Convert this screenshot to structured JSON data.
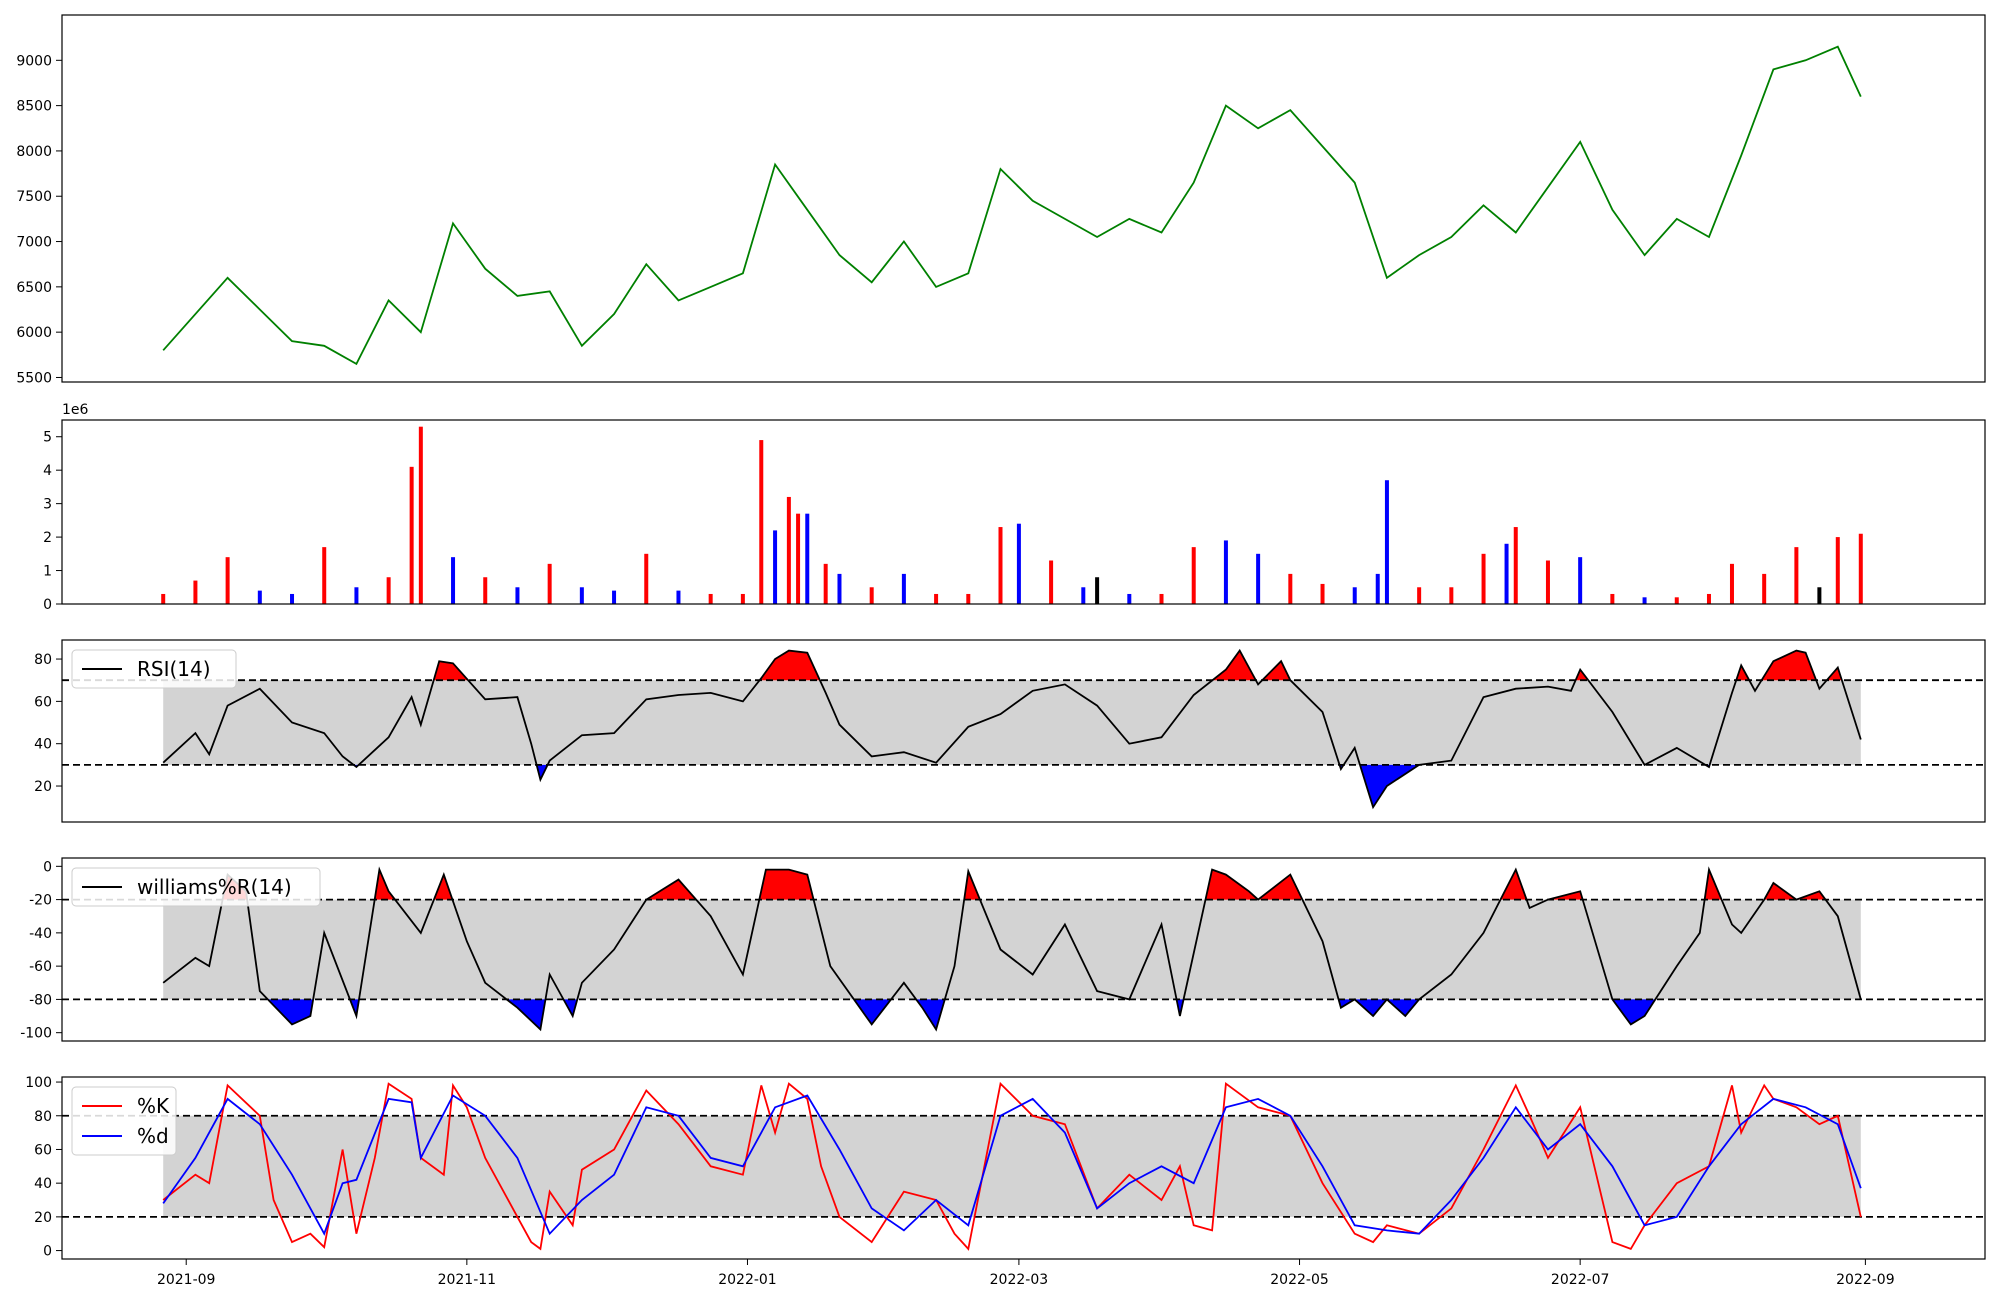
{
  "chart_data": [
    {
      "panel": "price",
      "type": "line",
      "color": "#008000",
      "ylim": [
        5450,
        9500
      ],
      "yticks": [
        5500,
        6000,
        6500,
        7000,
        7500,
        8000,
        8500,
        9000
      ],
      "x": [
        "2021-08-27",
        "2021-09-10",
        "2021-09-17",
        "2021-09-24",
        "2021-10-01",
        "2021-10-08",
        "2021-10-15",
        "2021-10-22",
        "2021-10-29",
        "2021-11-05",
        "2021-11-12",
        "2021-11-19",
        "2021-11-26",
        "2021-12-03",
        "2021-12-10",
        "2021-12-17",
        "2021-12-24",
        "2021-12-31",
        "2022-01-07",
        "2022-01-14",
        "2022-01-21",
        "2022-01-28",
        "2022-02-04",
        "2022-02-11",
        "2022-02-18",
        "2022-02-25",
        "2022-03-04",
        "2022-03-11",
        "2022-03-18",
        "2022-03-25",
        "2022-04-01",
        "2022-04-08",
        "2022-04-15",
        "2022-04-22",
        "2022-04-29",
        "2022-05-06",
        "2022-05-13",
        "2022-05-20",
        "2022-05-27",
        "2022-06-03",
        "2022-06-10",
        "2022-06-17",
        "2022-06-24",
        "2022-07-01",
        "2022-07-08",
        "2022-07-15",
        "2022-07-22",
        "2022-07-29",
        "2022-08-05",
        "2022-08-12",
        "2022-08-19",
        "2022-08-26",
        "2022-08-31"
      ],
      "y": [
        5800,
        6600,
        6250,
        5900,
        5850,
        5650,
        6350,
        6000,
        7200,
        6700,
        6400,
        6450,
        5850,
        6200,
        6750,
        6350,
        6500,
        6650,
        7850,
        7350,
        6850,
        6550,
        7000,
        6500,
        6650,
        7800,
        7450,
        7250,
        7050,
        7250,
        7100,
        7650,
        8500,
        8250,
        8450,
        8050,
        7650,
        6600,
        6850,
        7050,
        7400,
        7100,
        7600,
        8100,
        7350,
        6850,
        7250,
        7050,
        7950,
        8900,
        9000,
        9150,
        8600
      ]
    },
    {
      "panel": "volume",
      "type": "bar",
      "scale_label": "1e6",
      "ylim": [
        0,
        5.5
      ],
      "yticks": [
        0,
        1,
        2,
        3,
        4,
        5
      ],
      "colors": {
        "up": "#ff0000",
        "down": "#0000ff",
        "flat": "#000000"
      },
      "x": [
        "2021-08-27",
        "2021-09-03",
        "2021-09-10",
        "2021-09-17",
        "2021-09-24",
        "2021-10-01",
        "2021-10-08",
        "2021-10-15",
        "2021-10-20",
        "2021-10-22",
        "2021-10-29",
        "2021-11-05",
        "2021-11-12",
        "2021-11-19",
        "2021-11-26",
        "2021-12-03",
        "2021-12-10",
        "2021-12-17",
        "2021-12-24",
        "2021-12-31",
        "2022-01-04",
        "2022-01-07",
        "2022-01-10",
        "2022-01-12",
        "2022-01-14",
        "2022-01-18",
        "2022-01-21",
        "2022-01-28",
        "2022-02-04",
        "2022-02-11",
        "2022-02-18",
        "2022-02-25",
        "2022-03-01",
        "2022-03-08",
        "2022-03-15",
        "2022-03-18",
        "2022-03-25",
        "2022-04-01",
        "2022-04-08",
        "2022-04-15",
        "2022-04-22",
        "2022-04-29",
        "2022-05-06",
        "2022-05-13",
        "2022-05-18",
        "2022-05-20",
        "2022-05-27",
        "2022-06-03",
        "2022-06-10",
        "2022-06-15",
        "2022-06-17",
        "2022-06-24",
        "2022-07-01",
        "2022-07-08",
        "2022-07-15",
        "2022-07-22",
        "2022-07-29",
        "2022-08-03",
        "2022-08-10",
        "2022-08-17",
        "2022-08-22",
        "2022-08-26",
        "2022-08-31"
      ],
      "values": [
        0.3,
        0.7,
        1.4,
        0.4,
        0.3,
        1.7,
        0.5,
        0.8,
        4.1,
        5.3,
        1.4,
        0.8,
        0.5,
        1.2,
        0.5,
        0.4,
        1.5,
        0.4,
        0.3,
        0.3,
        4.9,
        2.2,
        3.2,
        2.7,
        2.7,
        1.2,
        0.9,
        0.5,
        0.9,
        0.3,
        0.3,
        2.3,
        2.4,
        1.3,
        0.5,
        0.8,
        0.3,
        0.3,
        1.7,
        1.9,
        1.5,
        0.9,
        0.6,
        0.5,
        0.9,
        3.7,
        0.5,
        0.5,
        1.5,
        1.8,
        2.3,
        1.3,
        1.4,
        0.3,
        0.2,
        0.2,
        0.3,
        1.2,
        0.9,
        1.7,
        0.5,
        2.0,
        2.1
      ],
      "directions": [
        "up",
        "up",
        "up",
        "down",
        "down",
        "up",
        "down",
        "up",
        "up",
        "up",
        "down",
        "up",
        "down",
        "up",
        "down",
        "down",
        "up",
        "down",
        "up",
        "up",
        "up",
        "down",
        "up",
        "up",
        "down",
        "up",
        "down",
        "up",
        "down",
        "up",
        "up",
        "up",
        "down",
        "up",
        "down",
        "flat",
        "down",
        "up",
        "up",
        "down",
        "down",
        "up",
        "up",
        "down",
        "down",
        "down",
        "up",
        "up",
        "up",
        "down",
        "up",
        "up",
        "down",
        "up",
        "down",
        "up",
        "up",
        "up",
        "up",
        "up",
        "flat",
        "up",
        "up"
      ]
    },
    {
      "panel": "rsi",
      "type": "line",
      "legend": "RSI(14)",
      "color": "#000000",
      "upper": 70,
      "lower": 30,
      "ylim": [
        3,
        89
      ],
      "yticks": [
        20,
        40,
        60,
        80
      ],
      "band_fill": "#d3d3d3",
      "over_color": "#ff0000",
      "under_color": "#0000ff",
      "x": [
        "2021-08-27",
        "2021-09-03",
        "2021-09-06",
        "2021-09-10",
        "2021-09-17",
        "2021-09-24",
        "2021-10-01",
        "2021-10-05",
        "2021-10-08",
        "2021-10-15",
        "2021-10-20",
        "2021-10-22",
        "2021-10-26",
        "2021-10-29",
        "2021-11-05",
        "2021-11-12",
        "2021-11-15",
        "2021-11-17",
        "2021-11-19",
        "2021-11-26",
        "2021-12-03",
        "2021-12-10",
        "2021-12-17",
        "2021-12-24",
        "2021-12-31",
        "2022-01-04",
        "2022-01-07",
        "2022-01-10",
        "2022-01-14",
        "2022-01-18",
        "2022-01-21",
        "2022-01-28",
        "2022-02-04",
        "2022-02-11",
        "2022-02-18",
        "2022-02-25",
        "2022-03-04",
        "2022-03-11",
        "2022-03-18",
        "2022-03-25",
        "2022-04-01",
        "2022-04-08",
        "2022-04-15",
        "2022-04-18",
        "2022-04-22",
        "2022-04-27",
        "2022-04-29",
        "2022-05-06",
        "2022-05-10",
        "2022-05-13",
        "2022-05-17",
        "2022-05-20",
        "2022-05-27",
        "2022-06-03",
        "2022-06-10",
        "2022-06-17",
        "2022-06-24",
        "2022-06-29",
        "2022-07-01",
        "2022-07-08",
        "2022-07-15",
        "2022-07-22",
        "2022-07-29",
        "2022-08-03",
        "2022-08-05",
        "2022-08-08",
        "2022-08-12",
        "2022-08-17",
        "2022-08-19",
        "2022-08-22",
        "2022-08-26",
        "2022-08-31"
      ],
      "y": [
        31,
        45,
        35,
        58,
        66,
        50,
        45,
        34,
        29,
        43,
        62,
        49,
        79,
        78,
        61,
        62,
        40,
        23,
        32,
        44,
        45,
        61,
        63,
        64,
        60,
        71,
        80,
        84,
        83,
        64,
        49,
        34,
        36,
        31,
        48,
        54,
        65,
        68,
        58,
        40,
        43,
        63,
        75,
        84,
        68,
        79,
        70,
        55,
        28,
        38,
        10,
        20,
        30,
        32,
        62,
        66,
        67,
        65,
        75,
        55,
        30,
        38,
        29,
        64,
        77,
        65,
        79,
        84,
        83,
        66,
        76,
        42
      ]
    },
    {
      "panel": "williams",
      "type": "line",
      "legend": "williams%R(14)",
      "color": "#000000",
      "upper": -20,
      "lower": -80,
      "ylim": [
        -105,
        5
      ],
      "yticks": [
        0,
        -20,
        -40,
        -60,
        -80,
        -100
      ],
      "band_fill": "#d3d3d3",
      "over_color": "#ff0000",
      "under_color": "#0000ff",
      "x": [
        "2021-08-27",
        "2021-09-03",
        "2021-09-06",
        "2021-09-10",
        "2021-09-14",
        "2021-09-17",
        "2021-09-24",
        "2021-09-28",
        "2021-10-01",
        "2021-10-08",
        "2021-10-13",
        "2021-10-15",
        "2021-10-22",
        "2021-10-27",
        "2021-11-01",
        "2021-11-05",
        "2021-11-12",
        "2021-11-17",
        "2021-11-19",
        "2021-11-24",
        "2021-11-26",
        "2021-12-03",
        "2021-12-10",
        "2021-12-17",
        "2021-12-24",
        "2021-12-31",
        "2022-01-05",
        "2022-01-10",
        "2022-01-14",
        "2022-01-19",
        "2022-01-28",
        "2022-02-04",
        "2022-02-08",
        "2022-02-11",
        "2022-02-15",
        "2022-02-18",
        "2022-02-25",
        "2022-03-04",
        "2022-03-11",
        "2022-03-18",
        "2022-03-25",
        "2022-04-01",
        "2022-04-05",
        "2022-04-12",
        "2022-04-15",
        "2022-04-20",
        "2022-04-22",
        "2022-04-29",
        "2022-05-06",
        "2022-05-10",
        "2022-05-13",
        "2022-05-17",
        "2022-05-20",
        "2022-05-24",
        "2022-05-27",
        "2022-06-03",
        "2022-06-10",
        "2022-06-17",
        "2022-06-20",
        "2022-06-24",
        "2022-07-01",
        "2022-07-08",
        "2022-07-12",
        "2022-07-15",
        "2022-07-22",
        "2022-07-27",
        "2022-07-29",
        "2022-08-03",
        "2022-08-05",
        "2022-08-10",
        "2022-08-12",
        "2022-08-17",
        "2022-08-22",
        "2022-08-26",
        "2022-08-31"
      ],
      "y": [
        -70,
        -55,
        -60,
        -5,
        -15,
        -75,
        -95,
        -90,
        -40,
        -90,
        -2,
        -15,
        -40,
        -5,
        -45,
        -70,
        -85,
        -98,
        -65,
        -90,
        -70,
        -50,
        -20,
        -8,
        -30,
        -65,
        -2,
        -2,
        -5,
        -60,
        -95,
        -70,
        -85,
        -98,
        -60,
        -3,
        -50,
        -65,
        -35,
        -75,
        -80,
        -35,
        -90,
        -2,
        -5,
        -15,
        -20,
        -5,
        -45,
        -85,
        -80,
        -90,
        -80,
        -90,
        -80,
        -65,
        -40,
        -2,
        -25,
        -20,
        -15,
        -80,
        -95,
        -90,
        -60,
        -40,
        -2,
        -35,
        -40,
        -20,
        -10,
        -20,
        -15,
        -30,
        -80
      ]
    },
    {
      "panel": "stochastic",
      "type": "line",
      "upper": 80,
      "lower": 20,
      "ylim": [
        -5,
        103
      ],
      "yticks": [
        0,
        20,
        40,
        60,
        80,
        100
      ],
      "band_fill": "#d3d3d3",
      "series": [
        {
          "name": "%K",
          "color": "#ff0000",
          "x": [
            "2021-08-27",
            "2021-09-03",
            "2021-09-06",
            "2021-09-10",
            "2021-09-17",
            "2021-09-20",
            "2021-09-24",
            "2021-09-28",
            "2021-10-01",
            "2021-10-05",
            "2021-10-08",
            "2021-10-12",
            "2021-10-15",
            "2021-10-20",
            "2021-10-22",
            "2021-10-27",
            "2021-10-29",
            "2021-11-01",
            "2021-11-05",
            "2021-11-12",
            "2021-11-15",
            "2021-11-17",
            "2021-11-19",
            "2021-11-24",
            "2021-11-26",
            "2021-12-03",
            "2021-12-10",
            "2021-12-17",
            "2021-12-24",
            "2021-12-31",
            "2022-01-04",
            "2022-01-07",
            "2022-01-10",
            "2022-01-14",
            "2022-01-17",
            "2022-01-21",
            "2022-01-28",
            "2022-02-04",
            "2022-02-11",
            "2022-02-15",
            "2022-02-18",
            "2022-02-25",
            "2022-03-04",
            "2022-03-11",
            "2022-03-18",
            "2022-03-25",
            "2022-04-01",
            "2022-04-05",
            "2022-04-08",
            "2022-04-12",
            "2022-04-15",
            "2022-04-22",
            "2022-04-29",
            "2022-05-06",
            "2022-05-13",
            "2022-05-17",
            "2022-05-20",
            "2022-05-27",
            "2022-06-03",
            "2022-06-10",
            "2022-06-17",
            "2022-06-20",
            "2022-06-24",
            "2022-07-01",
            "2022-07-08",
            "2022-07-12",
            "2022-07-15",
            "2022-07-22",
            "2022-07-29",
            "2022-08-03",
            "2022-08-05",
            "2022-08-10",
            "2022-08-12",
            "2022-08-17",
            "2022-08-22",
            "2022-08-26",
            "2022-08-31"
          ],
          "y": [
            30,
            45,
            40,
            98,
            80,
            30,
            5,
            10,
            2,
            60,
            10,
            55,
            99,
            90,
            55,
            45,
            98,
            85,
            55,
            20,
            5,
            1,
            35,
            15,
            48,
            60,
            95,
            75,
            50,
            45,
            98,
            70,
            99,
            90,
            50,
            20,
            5,
            35,
            30,
            10,
            1,
            99,
            80,
            75,
            25,
            45,
            30,
            50,
            15,
            12,
            99,
            85,
            80,
            40,
            10,
            5,
            15,
            10,
            25,
            60,
            98,
            80,
            55,
            85,
            5,
            1,
            15,
            40,
            50,
            98,
            70,
            98,
            90,
            85,
            75,
            80,
            20
          ]
        },
        {
          "name": "%d",
          "color": "#0000ff",
          "x": [
            "2021-08-27",
            "2021-09-03",
            "2021-09-10",
            "2021-09-17",
            "2021-09-24",
            "2021-10-01",
            "2021-10-05",
            "2021-10-08",
            "2021-10-15",
            "2021-10-20",
            "2021-10-22",
            "2021-10-29",
            "2021-11-05",
            "2021-11-12",
            "2021-11-19",
            "2021-11-26",
            "2021-12-03",
            "2021-12-10",
            "2021-12-17",
            "2021-12-24",
            "2021-12-31",
            "2022-01-07",
            "2022-01-14",
            "2022-01-21",
            "2022-01-28",
            "2022-02-04",
            "2022-02-11",
            "2022-02-18",
            "2022-02-25",
            "2022-03-04",
            "2022-03-11",
            "2022-03-18",
            "2022-03-25",
            "2022-04-01",
            "2022-04-08",
            "2022-04-15",
            "2022-04-22",
            "2022-04-29",
            "2022-05-06",
            "2022-05-13",
            "2022-05-20",
            "2022-05-27",
            "2022-06-03",
            "2022-06-10",
            "2022-06-17",
            "2022-06-24",
            "2022-07-01",
            "2022-07-08",
            "2022-07-15",
            "2022-07-22",
            "2022-07-29",
            "2022-08-05",
            "2022-08-12",
            "2022-08-19",
            "2022-08-26",
            "2022-08-31"
          ],
          "y": [
            28,
            55,
            90,
            75,
            45,
            10,
            40,
            42,
            90,
            88,
            55,
            92,
            80,
            55,
            10,
            30,
            45,
            85,
            80,
            55,
            50,
            85,
            92,
            60,
            25,
            12,
            30,
            15,
            80,
            90,
            70,
            25,
            40,
            50,
            40,
            85,
            90,
            80,
            50,
            15,
            12,
            10,
            30,
            55,
            85,
            60,
            75,
            50,
            15,
            20,
            50,
            75,
            90,
            85,
            75,
            37
          ]
        }
      ]
    }
  ],
  "x_axis": {
    "ticks": [
      "2021-09",
      "2021-11",
      "2022-01",
      "2022-03",
      "2022-05",
      "2022-07",
      "2022-09"
    ]
  }
}
